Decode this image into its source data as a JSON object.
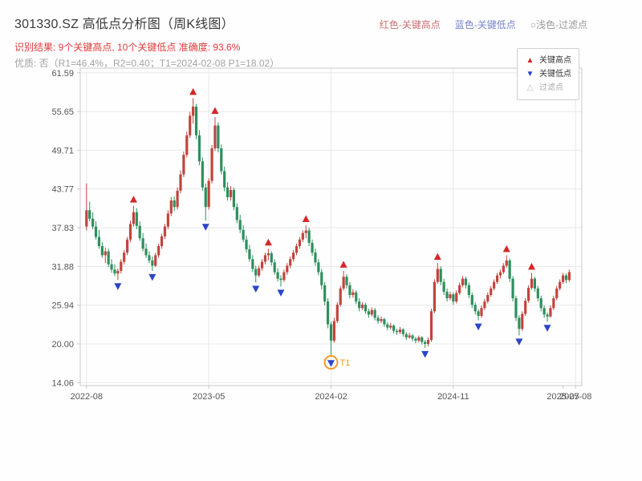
{
  "header": {
    "title": "301330.SZ 高低点分析图（周K线图）",
    "legend_top": [
      {
        "label": "红色-关键高点",
        "color": "#cc7070"
      },
      {
        "label": "蓝色-关键低点",
        "color": "#7585cc"
      },
      {
        "label": "○浅色-过滤点",
        "color": "#9a9a9a"
      }
    ],
    "result_line": "识别结果: 9个关键高点, 10个关键低点  准确度: 93.6%",
    "quality_line": "优质: 否（R1=46.4%，R2=0.40；T1=2024-02-08 P1=18.02）"
  },
  "chart_data": {
    "type": "candlestick",
    "title": "301330.SZ 高低点分析图（周K线图）",
    "xlabel": "",
    "ylabel": "",
    "period": "weekly",
    "ylim": [
      13.6,
      62.3
    ],
    "xlim_weeks": [
      -2,
      158
    ],
    "grid": true,
    "y_ticks": [
      {
        "label": "61.59",
        "value": 61.59
      },
      {
        "label": "55.65",
        "value": 55.65
      },
      {
        "label": "49.71",
        "value": 49.71
      },
      {
        "label": "43.77",
        "value": 43.77
      },
      {
        "label": "37.83",
        "value": 37.83
      },
      {
        "label": "31.88",
        "value": 31.88
      },
      {
        "label": "25.94",
        "value": 25.94
      },
      {
        "label": "20.00",
        "value": 20.0
      },
      {
        "label": "14.06",
        "value": 14.06
      }
    ],
    "x_ticks": [
      {
        "label": "2022-08",
        "week": 0,
        "grid": true
      },
      {
        "label": "2023-05",
        "week": 39,
        "grid": true
      },
      {
        "label": "2024-02",
        "week": 78,
        "grid": true
      },
      {
        "label": "2024-11",
        "week": 117,
        "grid": true
      },
      {
        "label": "2025-07",
        "week": 152,
        "grid": false
      },
      {
        "label": "2025-08",
        "week": 156,
        "grid": true
      }
    ],
    "candles": [
      [
        38.0,
        44.6,
        37.4,
        40.5
      ],
      [
        40.5,
        41.8,
        38.8,
        39.2
      ],
      [
        39.2,
        40.2,
        37.6,
        38.0
      ],
      [
        38.0,
        38.8,
        36.0,
        36.4
      ],
      [
        36.4,
        37.5,
        34.6,
        35.0
      ],
      [
        35.0,
        35.6,
        33.2,
        33.6
      ],
      [
        33.6,
        34.8,
        32.4,
        34.2
      ],
      [
        34.2,
        34.6,
        31.8,
        32.2
      ],
      [
        32.2,
        33.0,
        30.9,
        31.4
      ],
      [
        31.4,
        32.2,
        30.4,
        30.8
      ],
      [
        30.8,
        31.6,
        29.8,
        31.2
      ],
      [
        31.2,
        33.0,
        30.8,
        32.6
      ],
      [
        32.6,
        34.4,
        32.2,
        34.0
      ],
      [
        34.0,
        36.4,
        33.6,
        36.0
      ],
      [
        36.0,
        38.9,
        35.6,
        38.4
      ],
      [
        38.4,
        41.2,
        38.0,
        40.2
      ],
      [
        40.2,
        40.8,
        37.6,
        38.1
      ],
      [
        38.1,
        38.8,
        35.8,
        36.2
      ],
      [
        36.2,
        37.0,
        34.2,
        34.6
      ],
      [
        34.6,
        35.4,
        33.2,
        33.6
      ],
      [
        33.6,
        34.2,
        32.4,
        32.8
      ],
      [
        32.8,
        33.4,
        31.2,
        32.0
      ],
      [
        32.0,
        34.0,
        31.8,
        33.6
      ],
      [
        33.6,
        35.4,
        33.2,
        35.0
      ],
      [
        35.0,
        36.9,
        34.6,
        36.5
      ],
      [
        36.5,
        38.4,
        36.1,
        38.0
      ],
      [
        38.0,
        40.5,
        37.6,
        40.0
      ],
      [
        40.0,
        42.5,
        39.6,
        42.0
      ],
      [
        42.0,
        42.6,
        40.4,
        41.0
      ],
      [
        41.0,
        44.0,
        40.6,
        43.5
      ],
      [
        43.5,
        46.6,
        43.1,
        46.0
      ],
      [
        46.0,
        49.5,
        45.6,
        49.0
      ],
      [
        49.0,
        52.6,
        48.6,
        52.0
      ],
      [
        52.0,
        55.6,
        51.6,
        55.0
      ],
      [
        55.0,
        57.7,
        53.8,
        56.4
      ],
      [
        56.4,
        56.8,
        51.4,
        52.0
      ],
      [
        52.0,
        52.8,
        47.4,
        48.0
      ],
      [
        48.0,
        48.6,
        43.5,
        44.0
      ],
      [
        44.0,
        44.6,
        38.9,
        41.0
      ],
      [
        41.0,
        45.4,
        40.6,
        45.0
      ],
      [
        45.0,
        50.5,
        44.6,
        50.0
      ],
      [
        50.0,
        54.8,
        49.6,
        53.5
      ],
      [
        53.5,
        54.0,
        49.4,
        50.0
      ],
      [
        50.0,
        50.6,
        46.0,
        46.5
      ],
      [
        46.5,
        47.2,
        43.4,
        44.0
      ],
      [
        44.0,
        44.8,
        42.0,
        42.5
      ],
      [
        42.5,
        44.2,
        42.0,
        43.6
      ],
      [
        43.6,
        44.0,
        40.5,
        41.0
      ],
      [
        41.0,
        41.6,
        38.5,
        39.0
      ],
      [
        39.0,
        39.8,
        37.0,
        37.5
      ],
      [
        37.5,
        38.2,
        35.6,
        36.0
      ],
      [
        36.0,
        36.6,
        34.0,
        34.5
      ],
      [
        34.5,
        35.2,
        32.6,
        33.0
      ],
      [
        33.0,
        33.6,
        31.0,
        31.5
      ],
      [
        31.5,
        32.0,
        29.4,
        30.5
      ],
      [
        30.5,
        32.0,
        30.2,
        31.6
      ],
      [
        31.6,
        33.0,
        31.2,
        32.6
      ],
      [
        32.6,
        34.0,
        32.2,
        33.6
      ],
      [
        33.6,
        34.6,
        32.8,
        33.9
      ],
      [
        33.9,
        34.2,
        32.0,
        32.5
      ],
      [
        32.5,
        33.0,
        30.6,
        31.0
      ],
      [
        31.0,
        31.6,
        29.6,
        30.0
      ],
      [
        30.0,
        30.5,
        28.8,
        29.8
      ],
      [
        29.8,
        31.4,
        29.5,
        31.0
      ],
      [
        31.0,
        32.4,
        30.6,
        32.0
      ],
      [
        32.0,
        33.4,
        31.6,
        33.0
      ],
      [
        33.0,
        34.4,
        32.6,
        34.0
      ],
      [
        34.0,
        35.4,
        33.6,
        35.0
      ],
      [
        35.0,
        36.4,
        34.6,
        36.0
      ],
      [
        36.0,
        37.4,
        35.6,
        37.0
      ],
      [
        37.0,
        38.2,
        36.2,
        37.4
      ],
      [
        37.4,
        37.8,
        35.0,
        35.5
      ],
      [
        35.5,
        36.0,
        33.5,
        34.0
      ],
      [
        34.0,
        34.6,
        32.0,
        32.5
      ],
      [
        32.5,
        33.0,
        30.5,
        31.0
      ],
      [
        31.0,
        31.5,
        28.4,
        29.0
      ],
      [
        29.0,
        29.5,
        25.9,
        26.5
      ],
      [
        26.5,
        27.0,
        22.4,
        23.0
      ],
      [
        23.0,
        23.4,
        18.0,
        20.5
      ],
      [
        20.5,
        24.0,
        20.2,
        23.5
      ],
      [
        23.5,
        26.4,
        23.2,
        26.0
      ],
      [
        26.0,
        28.9,
        25.7,
        28.5
      ],
      [
        28.5,
        31.2,
        28.2,
        30.3
      ],
      [
        30.3,
        30.7,
        28.5,
        29.0
      ],
      [
        29.0,
        29.5,
        27.0,
        27.5
      ],
      [
        27.5,
        28.4,
        27.1,
        27.9
      ],
      [
        27.9,
        28.2,
        26.1,
        26.5
      ],
      [
        26.5,
        27.0,
        25.0,
        25.5
      ],
      [
        25.5,
        26.4,
        25.2,
        26.0
      ],
      [
        26.0,
        26.3,
        24.6,
        25.0
      ],
      [
        25.0,
        25.4,
        24.0,
        24.5
      ],
      [
        24.5,
        25.6,
        24.2,
        25.2
      ],
      [
        25.2,
        25.5,
        23.6,
        24.0
      ],
      [
        24.0,
        24.4,
        23.1,
        23.5
      ],
      [
        23.5,
        24.2,
        23.2,
        23.8
      ],
      [
        23.8,
        24.0,
        22.6,
        23.0
      ],
      [
        23.0,
        23.3,
        22.1,
        22.5
      ],
      [
        22.5,
        23.2,
        22.2,
        22.8
      ],
      [
        22.8,
        23.0,
        21.6,
        22.0
      ],
      [
        22.0,
        22.3,
        21.4,
        21.8
      ],
      [
        21.8,
        22.6,
        21.5,
        22.2
      ],
      [
        22.2,
        22.4,
        21.1,
        21.5
      ],
      [
        21.5,
        21.8,
        20.6,
        21.0
      ],
      [
        21.0,
        21.7,
        20.8,
        21.3
      ],
      [
        21.3,
        21.5,
        20.4,
        20.8
      ],
      [
        20.8,
        21.1,
        20.1,
        20.5
      ],
      [
        20.5,
        21.3,
        20.2,
        21.0
      ],
      [
        21.0,
        21.2,
        19.9,
        20.3
      ],
      [
        20.3,
        20.6,
        19.4,
        20.0
      ],
      [
        20.0,
        21.0,
        19.6,
        20.6
      ],
      [
        20.6,
        25.4,
        20.3,
        25.0
      ],
      [
        25.0,
        29.9,
        24.7,
        29.5
      ],
      [
        29.5,
        32.4,
        29.2,
        31.5
      ],
      [
        31.5,
        31.9,
        29.0,
        29.5
      ],
      [
        29.5,
        30.0,
        27.5,
        28.0
      ],
      [
        28.0,
        28.5,
        26.5,
        27.0
      ],
      [
        27.0,
        28.0,
        26.7,
        27.6
      ],
      [
        27.6,
        27.9,
        26.0,
        26.5
      ],
      [
        26.5,
        28.2,
        26.2,
        27.8
      ],
      [
        27.8,
        29.4,
        27.5,
        29.0
      ],
      [
        29.0,
        30.4,
        28.7,
        30.0
      ],
      [
        30.0,
        30.3,
        28.5,
        29.0
      ],
      [
        29.0,
        29.4,
        27.0,
        27.5
      ],
      [
        27.5,
        27.9,
        25.5,
        26.0
      ],
      [
        26.0,
        26.4,
        24.5,
        25.0
      ],
      [
        25.0,
        25.3,
        23.6,
        24.3
      ],
      [
        24.3,
        25.9,
        24.0,
        25.5
      ],
      [
        25.5,
        26.9,
        25.2,
        26.5
      ],
      [
        26.5,
        27.9,
        26.2,
        27.5
      ],
      [
        27.5,
        28.9,
        27.2,
        28.5
      ],
      [
        28.5,
        29.9,
        28.2,
        29.5
      ],
      [
        29.5,
        30.9,
        29.2,
        30.5
      ],
      [
        30.5,
        31.4,
        30.0,
        31.0
      ],
      [
        31.0,
        32.4,
        30.7,
        32.0
      ],
      [
        32.0,
        33.6,
        31.7,
        32.8
      ],
      [
        32.8,
        33.1,
        29.5,
        30.0
      ],
      [
        30.0,
        30.4,
        26.5,
        27.0
      ],
      [
        27.0,
        27.4,
        23.5,
        24.0
      ],
      [
        24.0,
        24.4,
        21.3,
        22.3
      ],
      [
        22.3,
        25.0,
        22.0,
        24.6
      ],
      [
        24.6,
        27.0,
        24.3,
        26.6
      ],
      [
        26.6,
        29.0,
        26.3,
        28.6
      ],
      [
        28.6,
        30.9,
        28.3,
        30.0
      ],
      [
        30.0,
        30.3,
        28.0,
        28.5
      ],
      [
        28.5,
        28.9,
        26.5,
        27.0
      ],
      [
        27.0,
        27.4,
        25.0,
        25.5
      ],
      [
        25.5,
        25.9,
        24.0,
        24.5
      ],
      [
        24.5,
        24.8,
        23.4,
        24.2
      ],
      [
        24.2,
        25.9,
        24.0,
        25.5
      ],
      [
        25.5,
        27.4,
        25.2,
        27.0
      ],
      [
        27.0,
        28.9,
        26.7,
        28.5
      ],
      [
        28.5,
        29.9,
        28.2,
        29.5
      ],
      [
        29.5,
        30.9,
        29.2,
        30.5
      ],
      [
        30.5,
        30.8,
        29.3,
        29.8
      ],
      [
        29.8,
        31.4,
        29.5,
        31.0
      ]
    ],
    "key_highs": [
      [
        15,
        41.2
      ],
      [
        34,
        57.7
      ],
      [
        41,
        54.8
      ],
      [
        58,
        34.6
      ],
      [
        70,
        38.2
      ],
      [
        82,
        31.2
      ],
      [
        112,
        32.4
      ],
      [
        134,
        33.6
      ],
      [
        142,
        30.9
      ]
    ],
    "key_lows": [
      [
        10,
        29.8
      ],
      [
        21,
        31.2
      ],
      [
        38,
        38.9
      ],
      [
        54,
        29.4
      ],
      [
        62,
        28.8
      ],
      [
        78,
        18.0
      ],
      [
        108,
        19.4
      ],
      [
        125,
        23.6
      ],
      [
        138,
        21.3
      ],
      [
        147,
        23.4
      ]
    ],
    "t1": {
      "week": 78,
      "price": 18.02,
      "label": "T1"
    },
    "in_plot_legend": [
      {
        "marker": "▲",
        "label": "关键高点"
      },
      {
        "marker": "▼",
        "label": "关键低点"
      },
      {
        "marker": "△",
        "label": "过滤点"
      }
    ],
    "colors": {
      "up": "#c0453e",
      "down": "#2e8f5d",
      "high_marker": "#d62728",
      "low_marker": "#2a44cc",
      "t1": "#f59a23",
      "grid": "#e8e8e8",
      "frame": "#c9c9c9",
      "tick_text": "#555555"
    }
  }
}
